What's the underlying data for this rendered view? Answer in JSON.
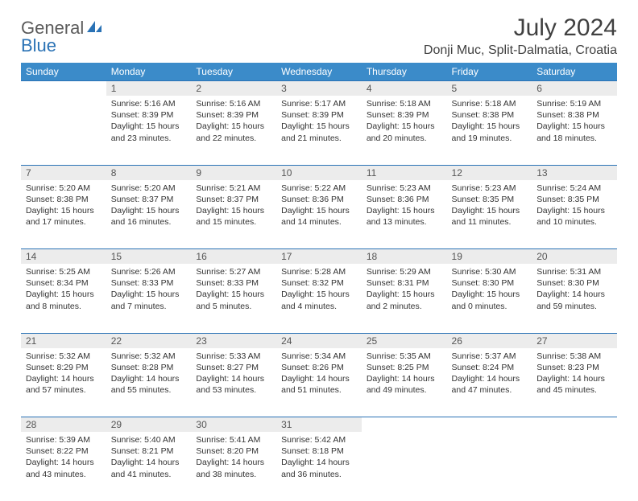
{
  "logo": {
    "line1": "General",
    "line2": "Blue"
  },
  "title": "July 2024",
  "location": "Donji Muc, Split-Dalmatia, Croatia",
  "colors": {
    "header_bg": "#3b8bc9",
    "header_text": "#ffffff",
    "daynum_bg": "#ececec",
    "rule": "#2a72b5",
    "logo_gray": "#5b5b5b",
    "logo_blue": "#2a72b5",
    "text": "#333333"
  },
  "fonts": {
    "title_pt": 30,
    "location_pt": 16,
    "header_pt": 12,
    "daynum_pt": 12,
    "cell_pt": 10.5
  },
  "weekdays": [
    "Sunday",
    "Monday",
    "Tuesday",
    "Wednesday",
    "Thursday",
    "Friday",
    "Saturday"
  ],
  "weeks": [
    [
      null,
      {
        "n": "1",
        "sr": "5:16 AM",
        "ss": "8:39 PM",
        "dl": "15 hours and 23 minutes."
      },
      {
        "n": "2",
        "sr": "5:16 AM",
        "ss": "8:39 PM",
        "dl": "15 hours and 22 minutes."
      },
      {
        "n": "3",
        "sr": "5:17 AM",
        "ss": "8:39 PM",
        "dl": "15 hours and 21 minutes."
      },
      {
        "n": "4",
        "sr": "5:18 AM",
        "ss": "8:39 PM",
        "dl": "15 hours and 20 minutes."
      },
      {
        "n": "5",
        "sr": "5:18 AM",
        "ss": "8:38 PM",
        "dl": "15 hours and 19 minutes."
      },
      {
        "n": "6",
        "sr": "5:19 AM",
        "ss": "8:38 PM",
        "dl": "15 hours and 18 minutes."
      }
    ],
    [
      {
        "n": "7",
        "sr": "5:20 AM",
        "ss": "8:38 PM",
        "dl": "15 hours and 17 minutes."
      },
      {
        "n": "8",
        "sr": "5:20 AM",
        "ss": "8:37 PM",
        "dl": "15 hours and 16 minutes."
      },
      {
        "n": "9",
        "sr": "5:21 AM",
        "ss": "8:37 PM",
        "dl": "15 hours and 15 minutes."
      },
      {
        "n": "10",
        "sr": "5:22 AM",
        "ss": "8:36 PM",
        "dl": "15 hours and 14 minutes."
      },
      {
        "n": "11",
        "sr": "5:23 AM",
        "ss": "8:36 PM",
        "dl": "15 hours and 13 minutes."
      },
      {
        "n": "12",
        "sr": "5:23 AM",
        "ss": "8:35 PM",
        "dl": "15 hours and 11 minutes."
      },
      {
        "n": "13",
        "sr": "5:24 AM",
        "ss": "8:35 PM",
        "dl": "15 hours and 10 minutes."
      }
    ],
    [
      {
        "n": "14",
        "sr": "5:25 AM",
        "ss": "8:34 PM",
        "dl": "15 hours and 8 minutes."
      },
      {
        "n": "15",
        "sr": "5:26 AM",
        "ss": "8:33 PM",
        "dl": "15 hours and 7 minutes."
      },
      {
        "n": "16",
        "sr": "5:27 AM",
        "ss": "8:33 PM",
        "dl": "15 hours and 5 minutes."
      },
      {
        "n": "17",
        "sr": "5:28 AM",
        "ss": "8:32 PM",
        "dl": "15 hours and 4 minutes."
      },
      {
        "n": "18",
        "sr": "5:29 AM",
        "ss": "8:31 PM",
        "dl": "15 hours and 2 minutes."
      },
      {
        "n": "19",
        "sr": "5:30 AM",
        "ss": "8:30 PM",
        "dl": "15 hours and 0 minutes."
      },
      {
        "n": "20",
        "sr": "5:31 AM",
        "ss": "8:30 PM",
        "dl": "14 hours and 59 minutes."
      }
    ],
    [
      {
        "n": "21",
        "sr": "5:32 AM",
        "ss": "8:29 PM",
        "dl": "14 hours and 57 minutes."
      },
      {
        "n": "22",
        "sr": "5:32 AM",
        "ss": "8:28 PM",
        "dl": "14 hours and 55 minutes."
      },
      {
        "n": "23",
        "sr": "5:33 AM",
        "ss": "8:27 PM",
        "dl": "14 hours and 53 minutes."
      },
      {
        "n": "24",
        "sr": "5:34 AM",
        "ss": "8:26 PM",
        "dl": "14 hours and 51 minutes."
      },
      {
        "n": "25",
        "sr": "5:35 AM",
        "ss": "8:25 PM",
        "dl": "14 hours and 49 minutes."
      },
      {
        "n": "26",
        "sr": "5:37 AM",
        "ss": "8:24 PM",
        "dl": "14 hours and 47 minutes."
      },
      {
        "n": "27",
        "sr": "5:38 AM",
        "ss": "8:23 PM",
        "dl": "14 hours and 45 minutes."
      }
    ],
    [
      {
        "n": "28",
        "sr": "5:39 AM",
        "ss": "8:22 PM",
        "dl": "14 hours and 43 minutes."
      },
      {
        "n": "29",
        "sr": "5:40 AM",
        "ss": "8:21 PM",
        "dl": "14 hours and 41 minutes."
      },
      {
        "n": "30",
        "sr": "5:41 AM",
        "ss": "8:20 PM",
        "dl": "14 hours and 38 minutes."
      },
      {
        "n": "31",
        "sr": "5:42 AM",
        "ss": "8:18 PM",
        "dl": "14 hours and 36 minutes."
      },
      null,
      null,
      null
    ]
  ],
  "labels": {
    "sunrise": "Sunrise: ",
    "sunset": "Sunset: ",
    "daylight": "Daylight: "
  }
}
